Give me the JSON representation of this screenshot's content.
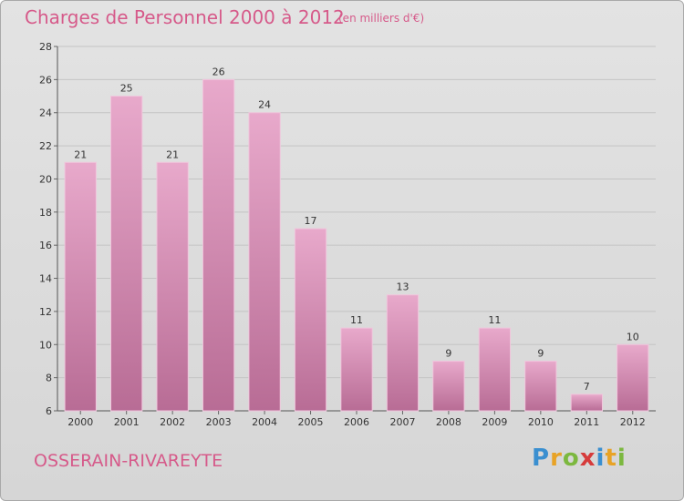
{
  "title": "Charges de Personnel 2000 à 2012",
  "units": "(en milliers d'€)",
  "location": "OSSERAIN-RIVAREYTE",
  "logo": {
    "text": "Proxiti",
    "colors": [
      "#3a8fd0",
      "#e8a326",
      "#7cb83f",
      "#d63b3b",
      "#3a8fd0",
      "#e8a326",
      "#7cb83f"
    ]
  },
  "colors": {
    "bar_light": "#e8a9cb",
    "bar_dark": "#b86c95",
    "accent": "#d65a8a"
  },
  "chart_data": {
    "type": "bar",
    "categories": [
      "2000",
      "2001",
      "2002",
      "2003",
      "2004",
      "2005",
      "2006",
      "2007",
      "2008",
      "2009",
      "2010",
      "2011",
      "2012"
    ],
    "values": [
      21,
      25,
      21,
      26,
      24,
      17,
      11,
      13,
      9,
      11,
      9,
      7,
      10
    ],
    "ylim": [
      6,
      28
    ],
    "yticks": [
      6,
      8,
      10,
      12,
      14,
      16,
      18,
      20,
      22,
      24,
      26,
      28
    ],
    "grid": true,
    "xlabel": "",
    "ylabel": ""
  }
}
